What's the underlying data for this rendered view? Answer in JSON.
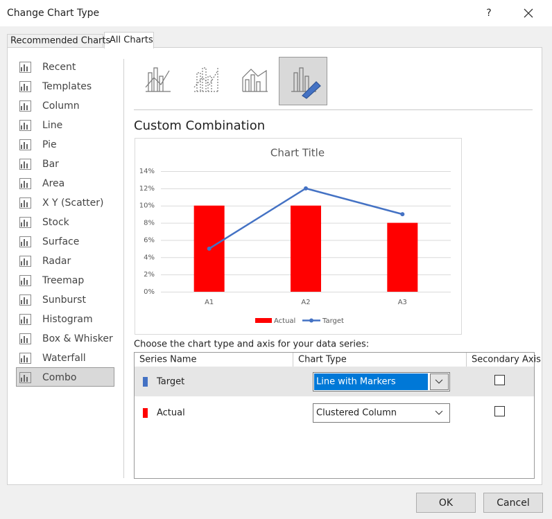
{
  "window": {
    "title": "Change Chart Type",
    "help": "?"
  },
  "tabs": [
    "Recommended Charts",
    "All Charts"
  ],
  "chart_types": [
    "Recent",
    "Templates",
    "Column",
    "Line",
    "Pie",
    "Bar",
    "Area",
    "X Y (Scatter)",
    "Stock",
    "Surface",
    "Radar",
    "Treemap",
    "Sunburst",
    "Histogram",
    "Box & Whisker",
    "Waterfall",
    "Combo"
  ],
  "heading": "Custom Combination",
  "chart_data": {
    "type": "combo",
    "title": "Chart Title",
    "categories": [
      "A1",
      "A2",
      "A3"
    ],
    "series": [
      {
        "name": "Actual",
        "type": "bar",
        "color": "#ff0000",
        "values": [
          10,
          10,
          8
        ]
      },
      {
        "name": "Target",
        "type": "line",
        "color": "#4472c4",
        "values": [
          5,
          12,
          9
        ]
      }
    ],
    "ylim": [
      0,
      14
    ],
    "yticks": [
      {
        "value": 0,
        "label": "0%"
      },
      {
        "value": 2,
        "label": "2%"
      },
      {
        "value": 4,
        "label": "4%"
      },
      {
        "value": 6,
        "label": "6%"
      },
      {
        "value": 8,
        "label": "8%"
      },
      {
        "value": 10,
        "label": "10%"
      },
      {
        "value": 12,
        "label": "12%"
      },
      {
        "value": 14,
        "label": "14%"
      }
    ],
    "grid": true,
    "legend": "bottom"
  },
  "series_table": {
    "caption": "Choose the chart type and axis for your data series:",
    "headers": [
      "Series Name",
      "Chart Type",
      "Secondary Axis"
    ],
    "rows": [
      [
        "Target",
        "Line with Markers"
      ],
      [
        "Actual",
        "Clustered Column"
      ]
    ]
  },
  "buttons": [
    "OK",
    "Cancel"
  ]
}
